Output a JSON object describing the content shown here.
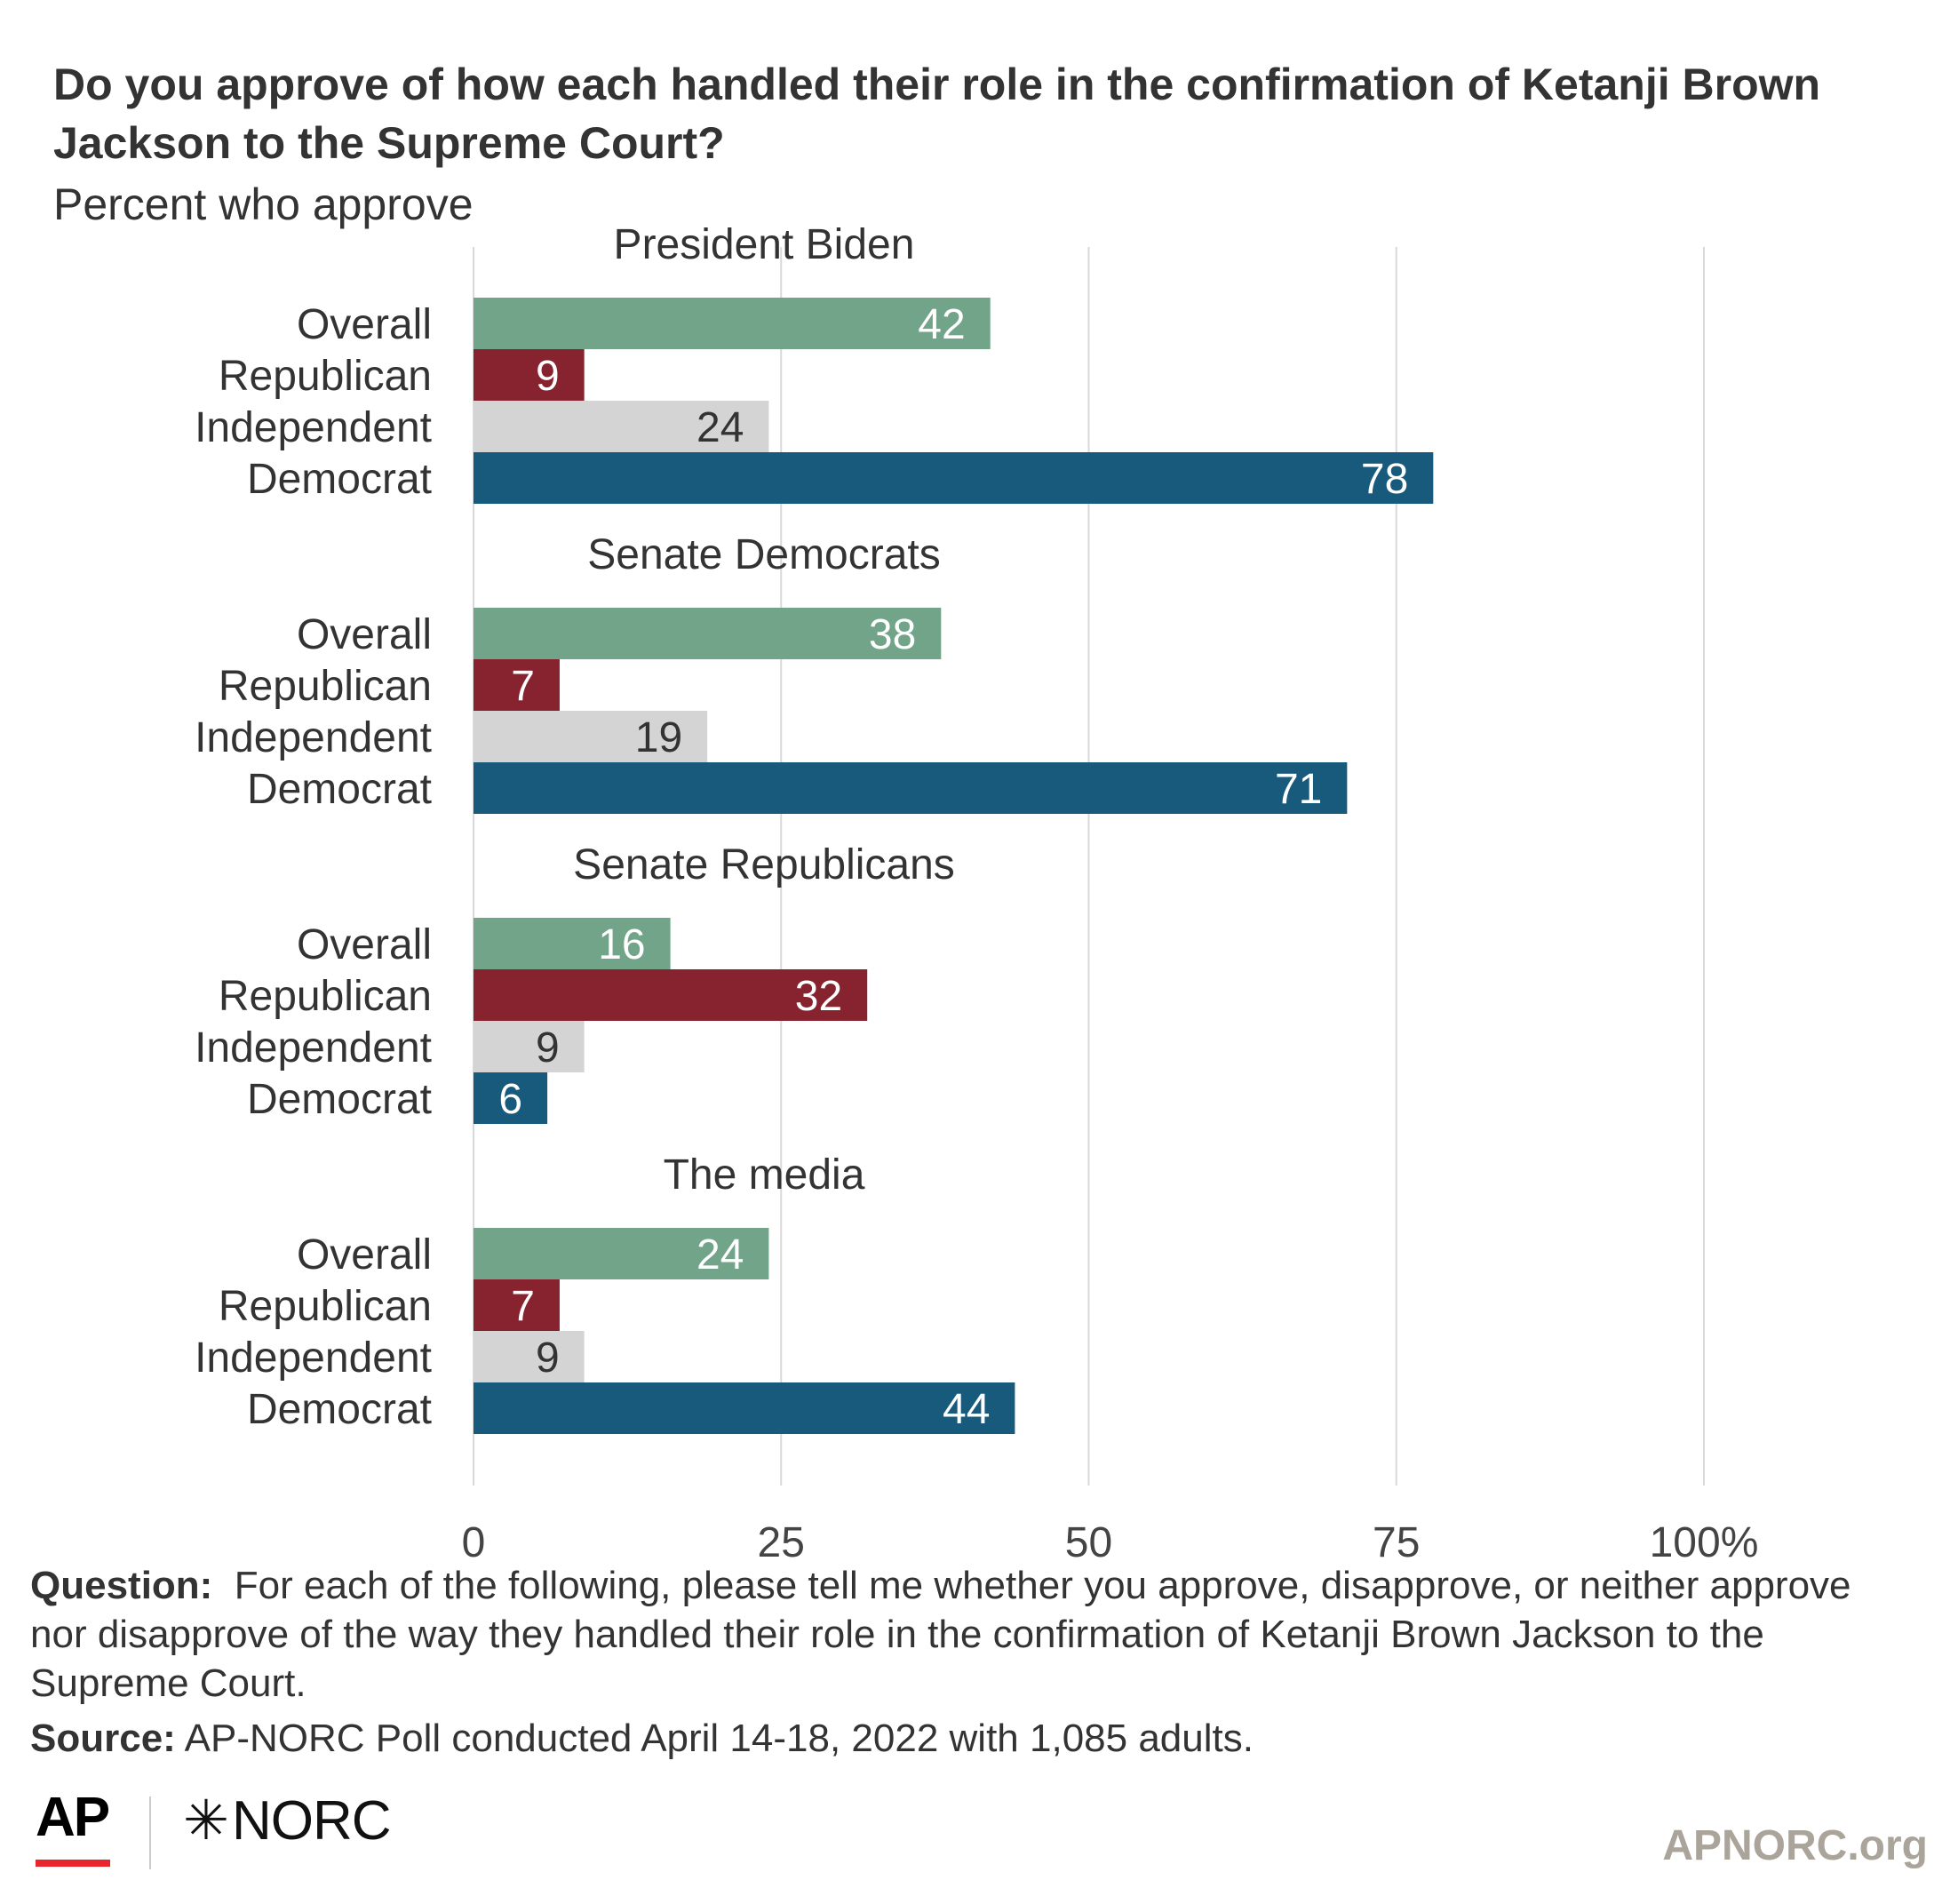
{
  "title": "Do you approve of how each handled their role in the confirmation of Ketanji Brown Jackson to the Supreme Court?",
  "subtitle": "Percent who approve",
  "notes": {
    "question_label": "Question:",
    "question_text": "For each of the following, please tell me whether you approve, disapprove, or neither approve nor disapprove of the way they handled their role in the confirmation of Ketanji Brown Jackson to the Supreme Court.",
    "source_label": "Source:",
    "source_text": "AP-NORC Poll conducted April 14-18, 2022 with 1,085 adults."
  },
  "footer": {
    "logo_ap": "AP",
    "logo_norc_star": "✳",
    "logo_norc": "NORC",
    "site": "APNORC.org"
  },
  "colors": {
    "Overall": "#72a489",
    "Republican": "#87232f",
    "Independent": "#d4d4d4",
    "Democrat": "#175a7c",
    "label_light": "#ffffff",
    "label_dark": "#333333",
    "grid": "#d9d9d9"
  },
  "chart_data": {
    "type": "bar",
    "orientation": "horizontal",
    "categories": [
      "Overall",
      "Republican",
      "Independent",
      "Democrat"
    ],
    "xlim": [
      0,
      100
    ],
    "ticks": [
      0,
      25,
      50,
      75,
      100
    ],
    "tick_labels": [
      "0",
      "25",
      "50",
      "75",
      "100%"
    ],
    "grid": true,
    "groups": [
      {
        "name": "President Biden",
        "values": [
          42,
          9,
          24,
          78
        ]
      },
      {
        "name": "Senate Democrats",
        "values": [
          38,
          7,
          19,
          71
        ]
      },
      {
        "name": "Senate Republicans",
        "values": [
          16,
          32,
          9,
          6
        ]
      },
      {
        "name": "The media",
        "values": [
          24,
          7,
          9,
          44
        ]
      }
    ]
  }
}
